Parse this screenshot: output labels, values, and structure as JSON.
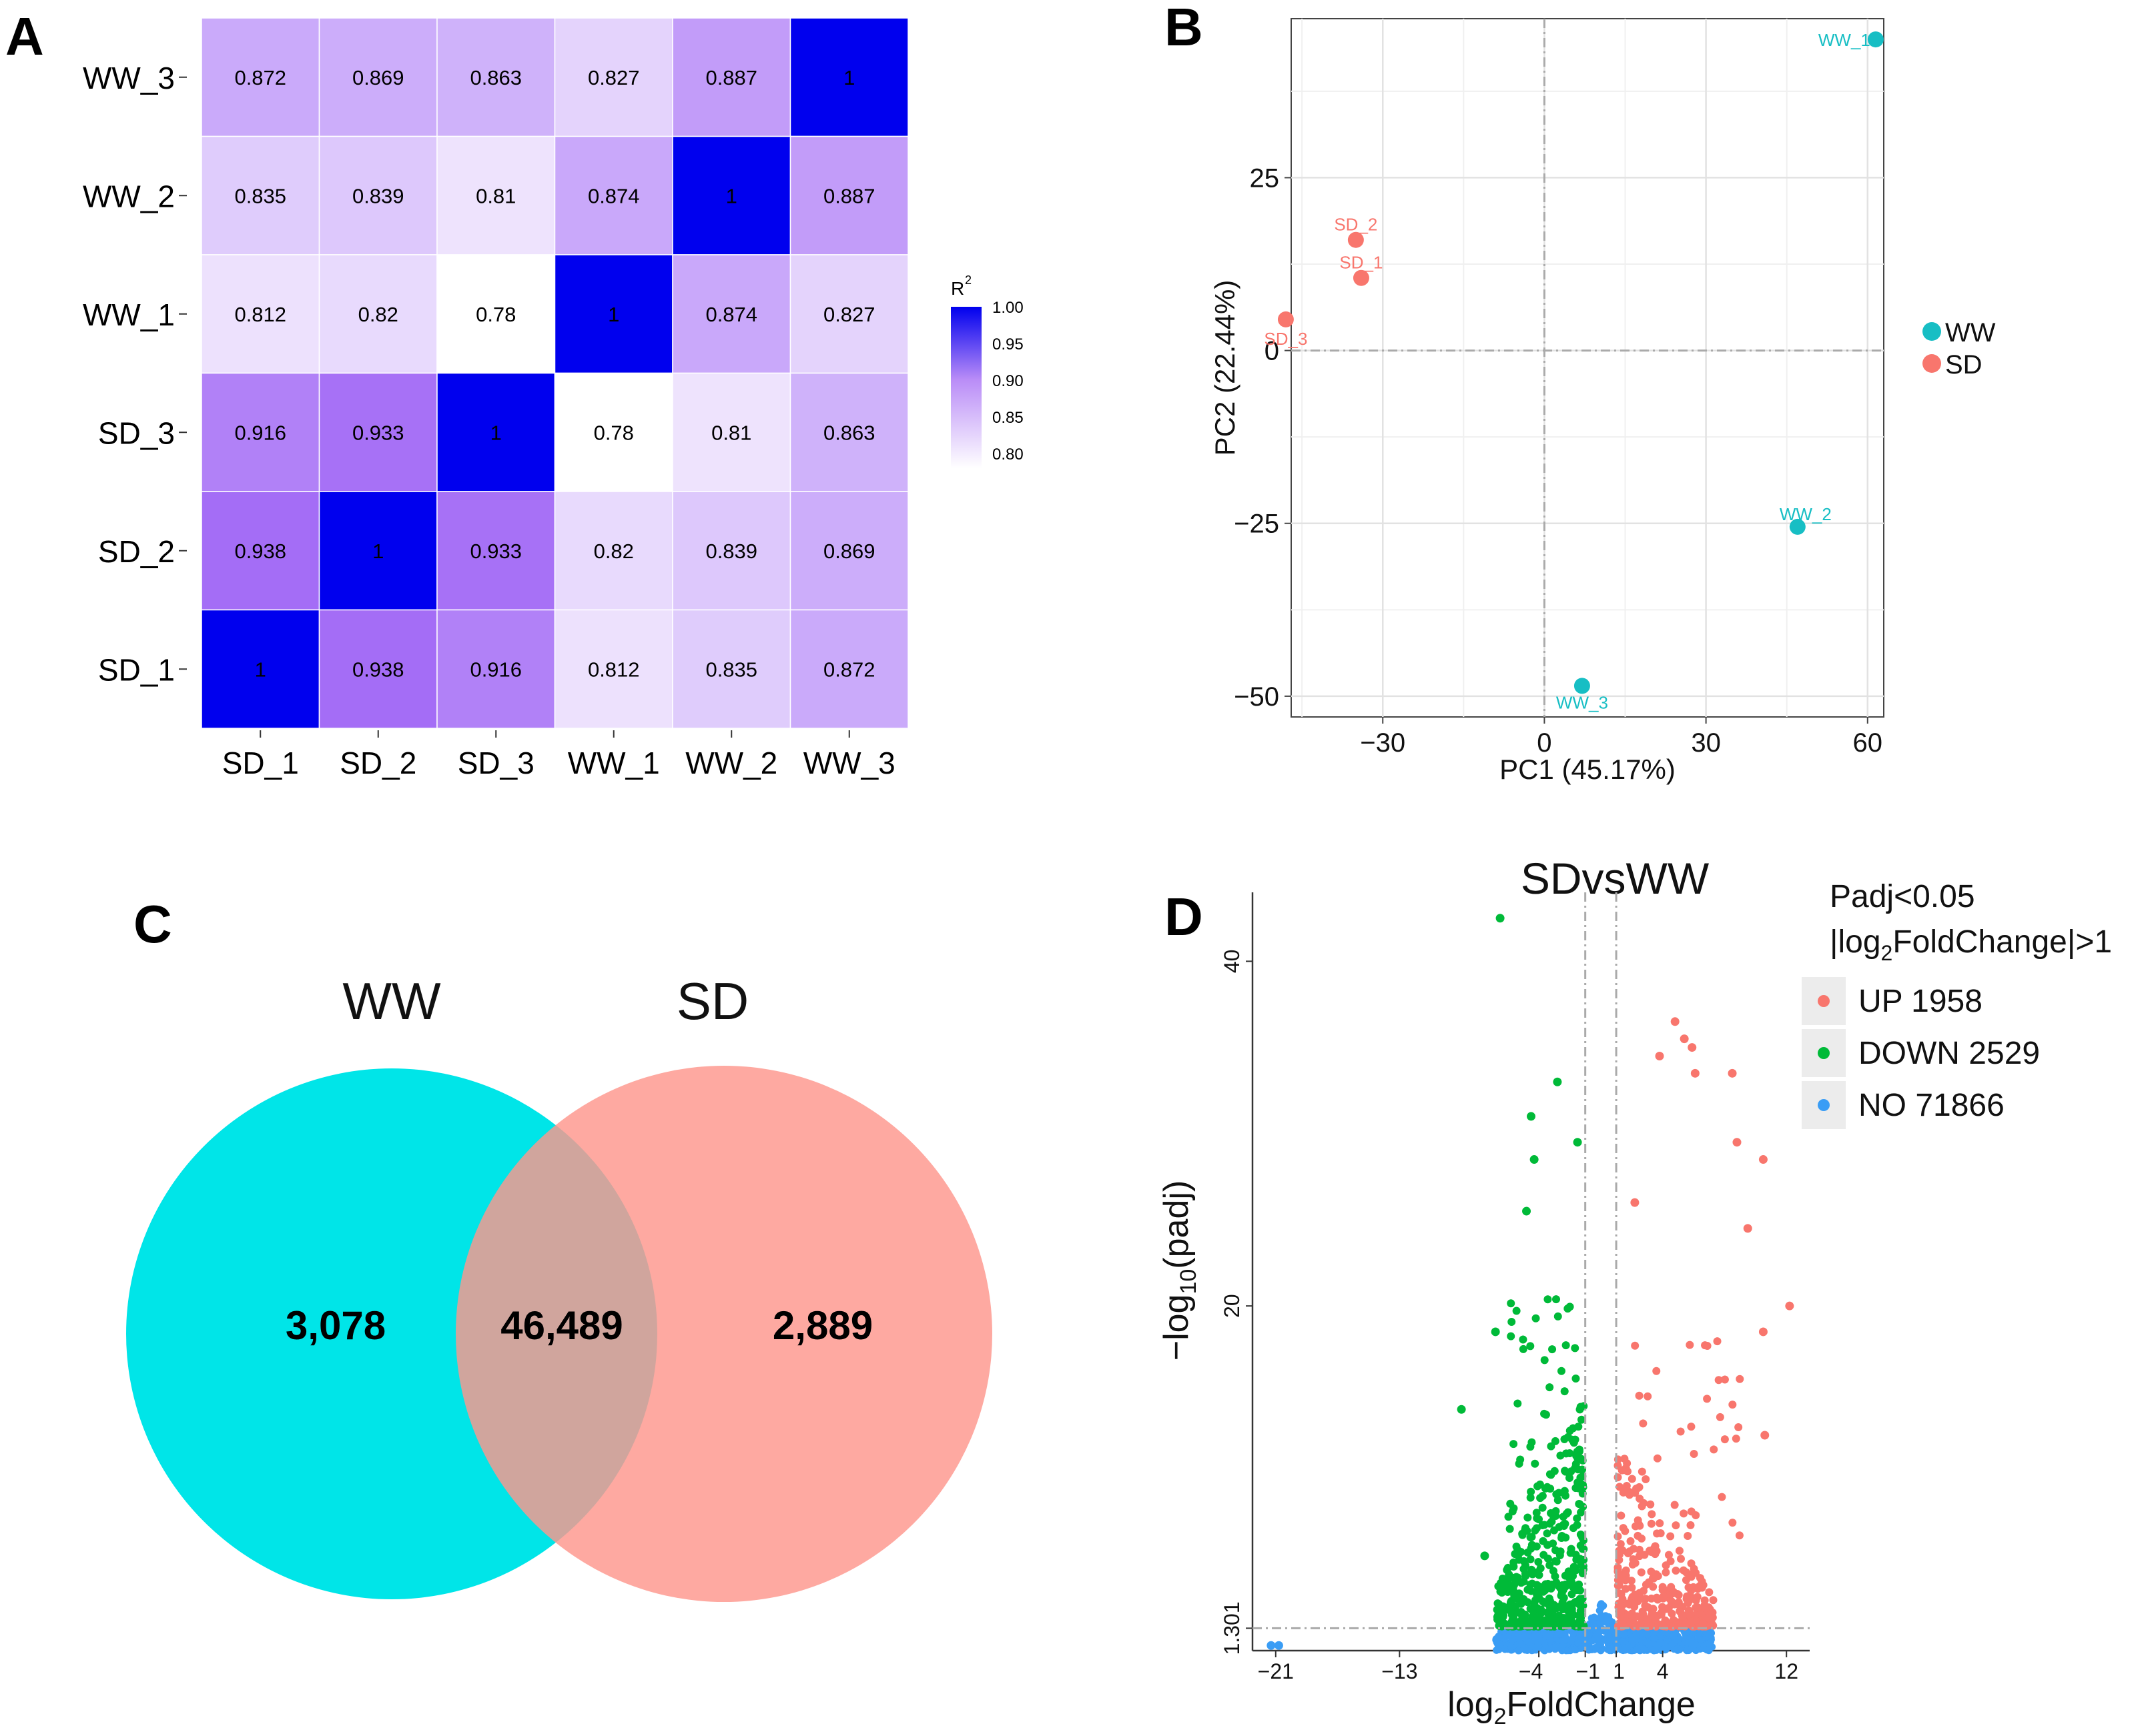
{
  "chart_data": [
    {
      "panel": "A",
      "type": "heatmap",
      "title": "",
      "rows": [
        "WW_3",
        "WW_2",
        "WW_1",
        "SD_3",
        "SD_2",
        "SD_1"
      ],
      "columns": [
        "SD_1",
        "SD_2",
        "SD_3",
        "WW_1",
        "WW_2",
        "WW_3"
      ],
      "cells": [
        [
          "0.872",
          "0.869",
          "0.863",
          "0.827",
          "0.887",
          "1"
        ],
        [
          "0.835",
          "0.839",
          "0.81",
          "0.874",
          "1",
          "0.887"
        ],
        [
          "0.812",
          "0.82",
          "0.78",
          "1",
          "0.874",
          "0.827"
        ],
        [
          "0.916",
          "0.933",
          "1",
          "0.78",
          "0.81",
          "0.863"
        ],
        [
          "0.938",
          "1",
          "0.933",
          "0.82",
          "0.839",
          "0.869"
        ],
        [
          "1",
          "0.938",
          "0.916",
          "0.812",
          "0.835",
          "0.872"
        ]
      ],
      "legend": {
        "title": "R",
        "title_sup": "2",
        "ticks": [
          "1.00",
          "0.95",
          "0.90",
          "0.85",
          "0.80"
        ],
        "range": [
          0.78,
          1.0
        ],
        "colors": [
          "#ffffff",
          "#0000ee"
        ]
      }
    },
    {
      "panel": "B",
      "type": "scatter",
      "xlabel": "PC1 (45.17%)",
      "ylabel": "PC2 (22.44%)",
      "xlim": [
        -47,
        63
      ],
      "ylim": [
        -53,
        48
      ],
      "xticks": [
        -30,
        0,
        30,
        60
      ],
      "yticks": [
        25,
        0,
        -25,
        -50
      ],
      "xtick_labels": [
        "−30",
        "0",
        "30",
        "60"
      ],
      "ytick_labels": [
        "25",
        "0",
        "−25",
        "−50"
      ],
      "points": [
        {
          "label": "WW_1",
          "group": "WW",
          "x": 61.5,
          "y": 45
        },
        {
          "label": "WW_2",
          "group": "WW",
          "x": 47,
          "y": -25.5
        },
        {
          "label": "WW_3",
          "group": "WW",
          "x": 7,
          "y": -48.5
        },
        {
          "label": "SD_2",
          "group": "SD",
          "x": -35,
          "y": 16
        },
        {
          "label": "SD_1",
          "group": "SD",
          "x": -34,
          "y": 10.5
        },
        {
          "label": "SD_3",
          "group": "SD",
          "x": -48,
          "y": 4.5
        }
      ],
      "legend": [
        {
          "name": "WW",
          "color": "#17bec4"
        },
        {
          "name": "SD",
          "color": "#f8766d"
        }
      ]
    },
    {
      "panel": "C",
      "type": "venn",
      "sets": [
        {
          "name": "WW",
          "unique": "3,078",
          "color": "#00e5e8"
        },
        {
          "name": "SD",
          "unique": "2,889",
          "color": "#fe968c"
        }
      ],
      "intersection": "46,489"
    },
    {
      "panel": "D",
      "type": "scatter",
      "title": "SDvsWW",
      "xlabel": "log",
      "xlabel_sub": "2",
      "xlabel_rest": "FoldChange",
      "ylabel": "−log",
      "ylabel_sub": "10",
      "ylabel_rest": "(padj)",
      "xlim": [
        -22.5,
        13.5
      ],
      "ylim": [
        0,
        44
      ],
      "xticks": [
        -21,
        -13,
        -4,
        -1,
        1,
        4,
        12
      ],
      "xtick_labels": [
        "−21",
        "−13",
        "−4",
        "−1",
        "1",
        "4",
        "12"
      ],
      "yticks": [
        1.301,
        20,
        40
      ],
      "ytick_labels": [
        "1.301",
        "20",
        "40"
      ],
      "threshold_x": [
        -1,
        1
      ],
      "threshold_y": 1.301,
      "legend_title_1": "Padj<0.05",
      "legend_title_2_pre": "|log",
      "legend_title_2_sub": "2",
      "legend_title_2_post": "FoldChange|>1",
      "legend": [
        {
          "name": "UP 1958",
          "color": "#f8766d",
          "count": 1958
        },
        {
          "name": "DOWN 2529",
          "color": "#00ba38",
          "count": 2529
        },
        {
          "name": "NO 71866",
          "color": "#3a9df5",
          "count": 71866
        }
      ],
      "outliers": [
        {
          "group": "DOWN",
          "x": -6.5,
          "y": 42.5
        },
        {
          "group": "DOWN",
          "x": -2.8,
          "y": 33
        },
        {
          "group": "DOWN",
          "x": -4.5,
          "y": 31
        },
        {
          "group": "DOWN",
          "x": -1.5,
          "y": 29.5
        },
        {
          "group": "DOWN",
          "x": -4.3,
          "y": 28.5
        },
        {
          "group": "DOWN",
          "x": -4.8,
          "y": 25.5
        },
        {
          "group": "DOWN",
          "x": -9,
          "y": 14
        },
        {
          "group": "DOWN",
          "x": -6.8,
          "y": 18.5
        },
        {
          "group": "DOWN",
          "x": -7.5,
          "y": 5.5
        },
        {
          "group": "UP",
          "x": 4.8,
          "y": 36.5
        },
        {
          "group": "UP",
          "x": 5.4,
          "y": 35.5
        },
        {
          "group": "UP",
          "x": 5.9,
          "y": 35
        },
        {
          "group": "UP",
          "x": 3.8,
          "y": 34.5
        },
        {
          "group": "UP",
          "x": 6.1,
          "y": 33.5
        },
        {
          "group": "UP",
          "x": 8.5,
          "y": 33.5
        },
        {
          "group": "UP",
          "x": 8.8,
          "y": 29.5
        },
        {
          "group": "UP",
          "x": 10.5,
          "y": 28.5
        },
        {
          "group": "UP",
          "x": 2.2,
          "y": 26
        },
        {
          "group": "UP",
          "x": 9.5,
          "y": 24.5
        },
        {
          "group": "UP",
          "x": 12.2,
          "y": 20
        },
        {
          "group": "UP",
          "x": 10.5,
          "y": 18.5
        },
        {
          "group": "UP",
          "x": 10.6,
          "y": 12.5
        },
        {
          "group": "NO",
          "x": -21.3,
          "y": 0.3
        },
        {
          "group": "NO",
          "x": -20.8,
          "y": 0.3
        }
      ]
    }
  ],
  "panel_labels": {
    "a": "A",
    "b": "B",
    "c": "C",
    "d": "D"
  }
}
